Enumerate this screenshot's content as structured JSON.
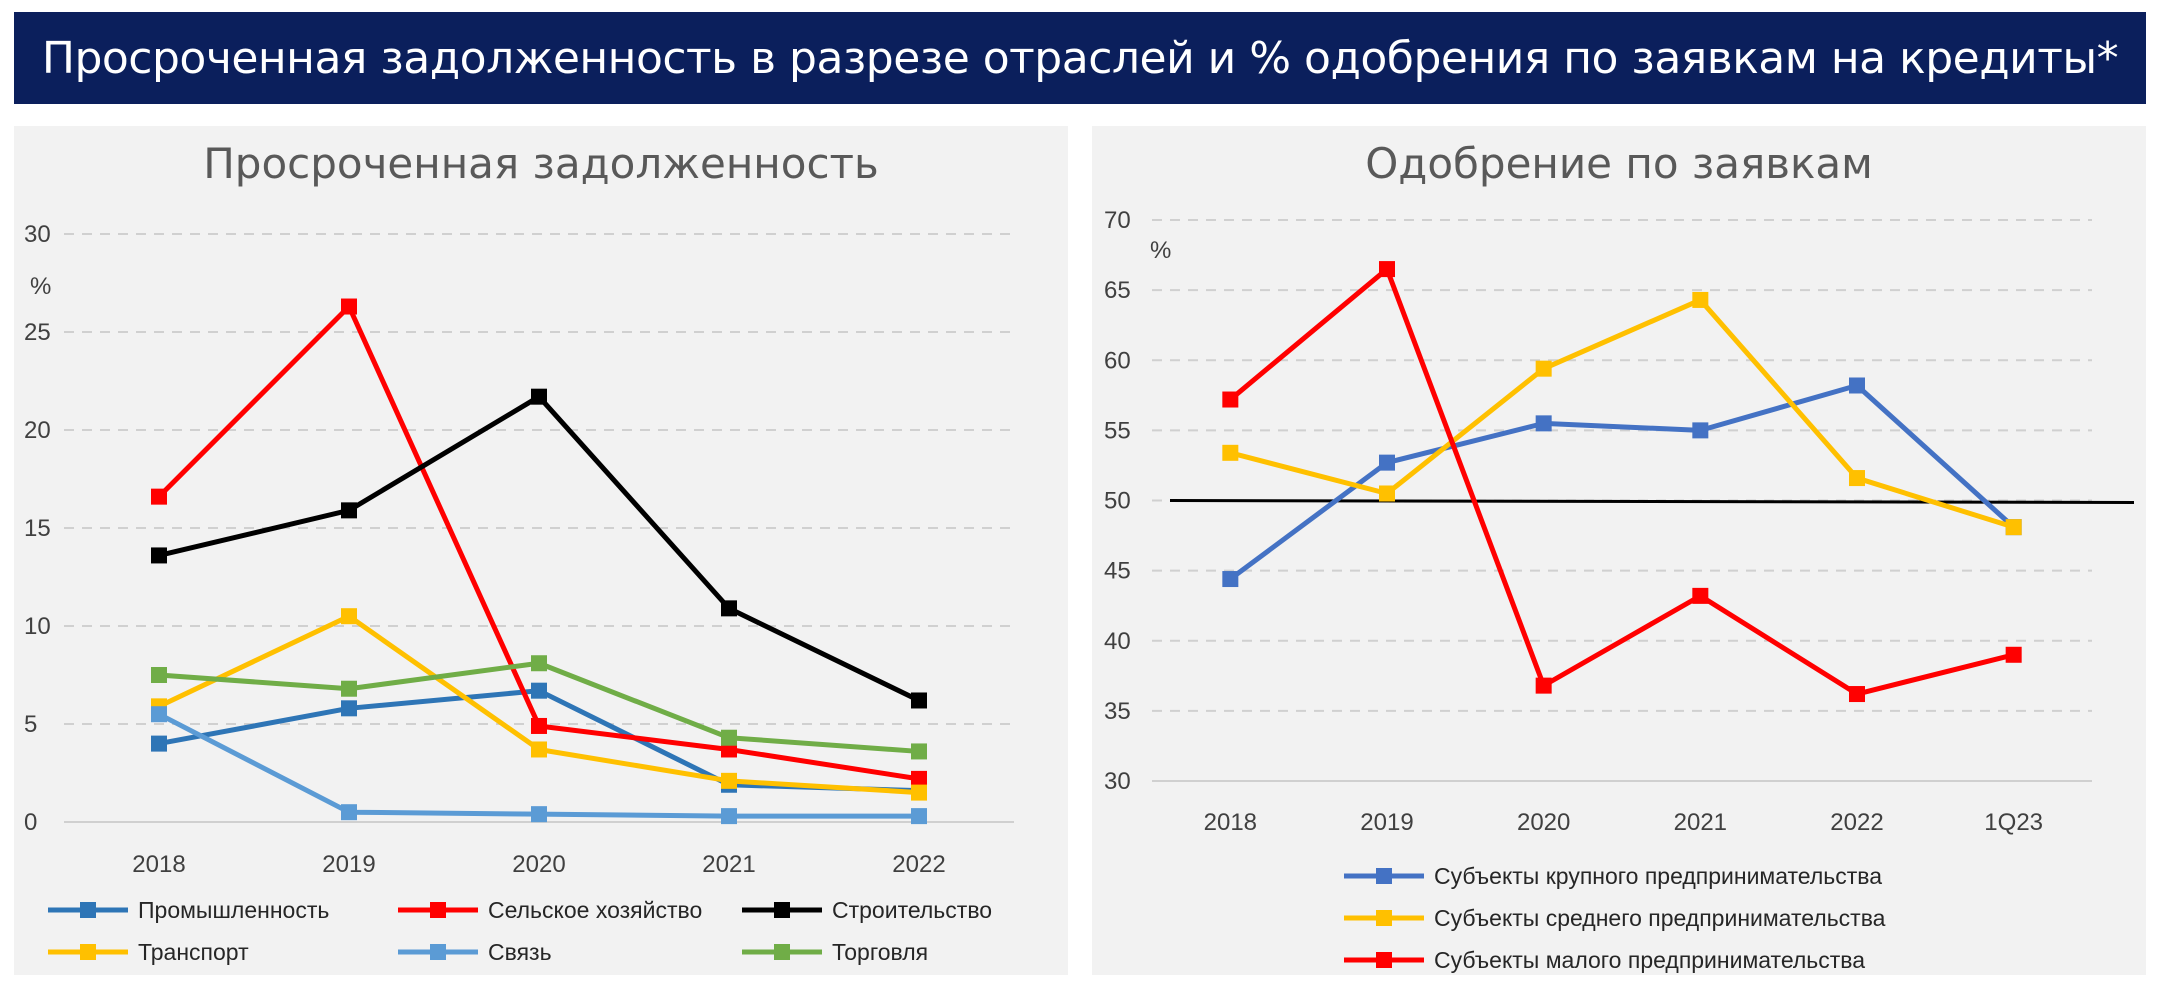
{
  "banner": {
    "title": "Просроченная задолженность в разрезе отраслей и % одобрения по заявкам на кредиты*"
  },
  "chart_data": [
    {
      "type": "line",
      "title": "Просроченная задолженность",
      "ylabel": "%",
      "x": [
        "2018",
        "2019",
        "2020",
        "2021",
        "2022"
      ],
      "ylim": [
        0,
        30
      ],
      "yticks": [
        0,
        5,
        10,
        15,
        20,
        25,
        30
      ],
      "grid": true,
      "legend": "bottom",
      "series": [
        {
          "name": "Промышленность",
          "color": "#2e75b6",
          "values": [
            4.0,
            5.8,
            6.7,
            1.9,
            1.6
          ]
        },
        {
          "name": "Сельское хозяйство",
          "color": "#ff0000",
          "values": [
            16.6,
            26.3,
            4.9,
            3.7,
            2.2
          ]
        },
        {
          "name": "Строительство",
          "color": "#000000",
          "values": [
            13.6,
            15.9,
            21.7,
            10.9,
            6.2
          ]
        },
        {
          "name": "Транспорт",
          "color": "#ffc000",
          "values": [
            5.9,
            10.5,
            3.7,
            2.1,
            1.5
          ]
        },
        {
          "name": "Связь",
          "color": "#5b9bd5",
          "values": [
            5.5,
            0.5,
            0.4,
            0.3,
            0.3
          ]
        },
        {
          "name": "Торговля",
          "color": "#70ad47",
          "values": [
            7.5,
            6.8,
            8.1,
            4.3,
            3.6
          ]
        }
      ]
    },
    {
      "type": "line",
      "title": "Одобрение по заявкам",
      "ylabel": "%",
      "x": [
        "2018",
        "2019",
        "2020",
        "2021",
        "2022",
        "1Q23"
      ],
      "ylim": [
        30,
        70
      ],
      "yticks": [
        30,
        35,
        40,
        45,
        50,
        55,
        60,
        65,
        70
      ],
      "grid": true,
      "reference_line": 50,
      "legend": "bottom",
      "series": [
        {
          "name": "Субъекты крупного предпринимательства",
          "color": "#4472c4",
          "values": [
            44.4,
            52.7,
            55.5,
            55.0,
            58.2,
            48.1
          ]
        },
        {
          "name": "Субъекты среднего предпринимательства",
          "color": "#ffc000",
          "values": [
            53.4,
            50.5,
            59.4,
            64.3,
            51.6,
            48.1
          ]
        },
        {
          "name": "Субъекты малого предпринимательства",
          "color": "#ff0000",
          "values": [
            57.2,
            66.5,
            36.8,
            43.2,
            36.2,
            39.0
          ]
        }
      ]
    }
  ]
}
